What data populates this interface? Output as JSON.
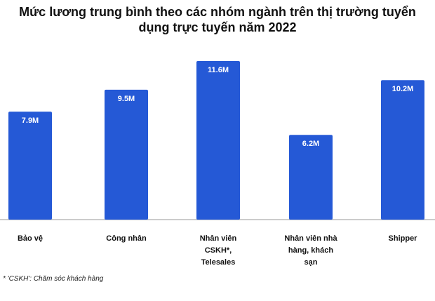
{
  "chart_data": {
    "type": "bar",
    "title": "Mức lương trung bình theo các nhóm ngành trên thị trường tuyển dụng trực tuyến năm 2022",
    "categories": [
      "Bảo vệ",
      "Công nhân",
      "Nhân viên CSKH*, Telesales",
      "Nhân viên nhà hàng, khách sạn",
      "Shipper"
    ],
    "values": [
      7.9,
      9.5,
      11.6,
      6.2,
      10.2
    ],
    "value_labels": [
      "7.9M",
      "9.5M",
      "11.6M",
      "6.2M",
      "10.2M"
    ],
    "color": "#2559d6",
    "note": "* 'CSKH': Chăm sóc khách hàng"
  }
}
